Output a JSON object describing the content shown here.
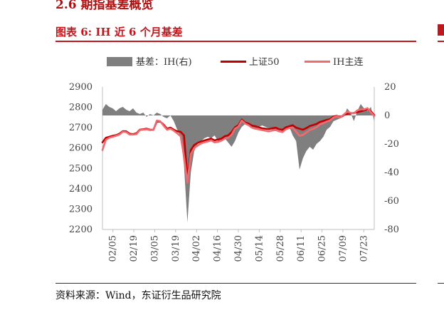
{
  "header": {
    "section_title": "2.6  期指基差概览",
    "figure_title": "图表 6: IH 近 6 个月基差"
  },
  "footer": {
    "source": "资料来源：Wind，东证衍生品研究院"
  },
  "colors": {
    "basis": "#7f7f7f",
    "index": "#c00000",
    "continuous": "#f06a70",
    "title": "#c0161c"
  },
  "chart_data": {
    "type": "line",
    "legend_position": "top",
    "grid": false,
    "y_left": {
      "ticks": [
        2900,
        2800,
        2700,
        2600,
        2500,
        2400,
        2300,
        2200
      ],
      "lim": [
        2200,
        2900
      ]
    },
    "y_right": {
      "ticks": [
        20,
        0,
        -20,
        -40,
        -60,
        -80
      ],
      "lim": [
        -80,
        20
      ]
    },
    "x_ticks": [
      "02/05",
      "02/19",
      "03/05",
      "03/19",
      "04/02",
      "04/16",
      "04/30",
      "05/14",
      "05/28",
      "06/11",
      "06/25",
      "07/09",
      "07/23"
    ],
    "series": [
      {
        "name": "基差：IH(右)",
        "type": "area",
        "axis": "right",
        "values": [
          4,
          8,
          6,
          5,
          3,
          5,
          6,
          4,
          3,
          5,
          2,
          1,
          2,
          -1,
          1,
          0,
          2,
          1,
          -1,
          -2,
          0,
          -4,
          -10,
          -15,
          -35,
          -75,
          -40,
          -25,
          -20,
          -18,
          -16,
          -15,
          -16,
          -14,
          -18,
          -17,
          -16,
          -19,
          -22,
          -18,
          -12,
          -8,
          -6,
          -5,
          -9,
          -10,
          -8,
          -7,
          -8,
          -9,
          -10,
          -11,
          -9,
          -12,
          -10,
          -8,
          -14,
          -18,
          -38,
          -30,
          -25,
          -22,
          -24,
          -20,
          -18,
          -15,
          -10,
          -8,
          -4,
          -3,
          -2,
          -1,
          5,
          2,
          -4,
          3,
          8,
          5,
          3,
          6,
          -4
        ]
      },
      {
        "name": "上证50",
        "type": "line",
        "axis": "left",
        "values": [
          2628,
          2650,
          2655,
          2660,
          2663,
          2670,
          2683,
          2682,
          2670,
          2668,
          2672,
          2690,
          2692,
          2695,
          2690,
          2690,
          2730,
          2730,
          2715,
          2695,
          2700,
          2690,
          2682,
          2680,
          2662,
          2450,
          2590,
          2615,
          2625,
          2632,
          2637,
          2642,
          2646,
          2638,
          2642,
          2646,
          2658,
          2662,
          2678,
          2702,
          2712,
          2740,
          2725,
          2720,
          2710,
          2707,
          2702,
          2697,
          2695,
          2693,
          2697,
          2700,
          2692,
          2690,
          2702,
          2707,
          2712,
          2700,
          2695,
          2690,
          2698,
          2708,
          2713,
          2718,
          2728,
          2733,
          2738,
          2742,
          2755,
          2758,
          2752,
          2762,
          2768,
          2770,
          2772,
          2776,
          2780,
          2785,
          2790,
          2780,
          2762
        ]
      },
      {
        "name": "IH主连",
        "type": "line",
        "axis": "left",
        "values": [
          2590,
          2640,
          2650,
          2655,
          2660,
          2666,
          2680,
          2678,
          2666,
          2666,
          2668,
          2688,
          2690,
          2692,
          2688,
          2689,
          2735,
          2732,
          2710,
          2690,
          2695,
          2685,
          2672,
          2658,
          2560,
          2430,
          2570,
          2600,
          2612,
          2622,
          2628,
          2632,
          2638,
          2628,
          2630,
          2636,
          2646,
          2650,
          2665,
          2695,
          2705,
          2735,
          2720,
          2712,
          2700,
          2695,
          2692,
          2688,
          2685,
          2682,
          2686,
          2688,
          2682,
          2678,
          2692,
          2698,
          2700,
          2680,
          2660,
          2665,
          2676,
          2688,
          2694,
          2702,
          2716,
          2722,
          2730,
          2736,
          2750,
          2756,
          2750,
          2764,
          2778,
          2773,
          2770,
          2785,
          2790,
          2789,
          2796,
          2775,
          2758
        ]
      }
    ]
  }
}
